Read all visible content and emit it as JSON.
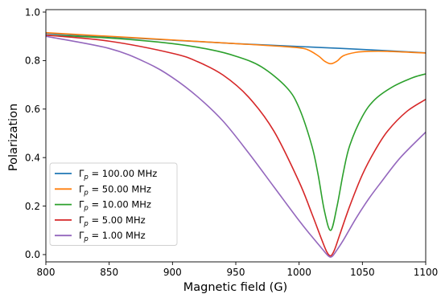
{
  "chart_data": {
    "type": "line",
    "title": "",
    "xlabel": "Magnetic field (G)",
    "ylabel": "Polarization",
    "xlim": [
      800,
      1100
    ],
    "ylim": [
      -0.03,
      1.01
    ],
    "xticks": [
      800,
      850,
      900,
      950,
      1000,
      1050,
      1100
    ],
    "yticks": [
      0.0,
      0.2,
      0.4,
      0.6,
      0.8,
      1.0
    ],
    "xtick_labels": [
      "800",
      "850",
      "900",
      "950",
      "1000",
      "1050",
      "1100"
    ],
    "ytick_labels": [
      "0.0",
      "0.2",
      "0.4",
      "0.6",
      "0.8",
      "1.0"
    ],
    "grid": false,
    "legend_position": "lower-left",
    "series": [
      {
        "name": "Γp = 100.00 MHz",
        "legend_prefix": "Γ",
        "legend_sub": "p",
        "legend_suffix": " = 100.00 MHz",
        "color": "#1f77b4",
        "x": [
          800,
          850,
          900,
          950,
          1000,
          1025,
          1050,
          1100
        ],
        "y": [
          0.912,
          0.898,
          0.884,
          0.87,
          0.858,
          0.852,
          0.846,
          0.832
        ]
      },
      {
        "name": "Γp = 50.00 MHz",
        "legend_prefix": "Γ",
        "legend_sub": "p",
        "legend_suffix": " = 50.00 MHz",
        "color": "#ff7f0e",
        "x": [
          800,
          850,
          900,
          950,
          990,
          1005,
          1015,
          1020,
          1025,
          1030,
          1035,
          1045,
          1055,
          1070,
          1100
        ],
        "y": [
          0.915,
          0.9,
          0.885,
          0.87,
          0.857,
          0.848,
          0.82,
          0.798,
          0.787,
          0.798,
          0.82,
          0.834,
          0.838,
          0.838,
          0.831
        ]
      },
      {
        "name": "Γp = 10.00 MHz",
        "legend_prefix": "Γ",
        "legend_sub": "p",
        "legend_suffix": " = 10.00 MHz",
        "color": "#2ca02c",
        "x": [
          800,
          850,
          900,
          930,
          950,
          970,
          990,
          1000,
          1010,
          1015,
          1020,
          1025,
          1030,
          1035,
          1040,
          1050,
          1060,
          1075,
          1090,
          1100
        ],
        "y": [
          0.905,
          0.893,
          0.87,
          0.845,
          0.818,
          0.775,
          0.69,
          0.605,
          0.45,
          0.33,
          0.18,
          0.1,
          0.2,
          0.34,
          0.45,
          0.57,
          0.64,
          0.695,
          0.73,
          0.745
        ]
      },
      {
        "name": "Γp = 5.00 MHz",
        "legend_prefix": "Γ",
        "legend_sub": "p",
        "legend_suffix": " = 5.00 MHz",
        "color": "#d62728",
        "x": [
          800,
          850,
          900,
          920,
          940,
          960,
          980,
          1000,
          1010,
          1018,
          1022,
          1025,
          1028,
          1032,
          1040,
          1050,
          1060,
          1070,
          1085,
          1100
        ],
        "y": [
          0.905,
          0.88,
          0.83,
          0.795,
          0.74,
          0.65,
          0.51,
          0.3,
          0.17,
          0.06,
          0.01,
          -0.005,
          0.02,
          0.08,
          0.2,
          0.33,
          0.43,
          0.51,
          0.59,
          0.64
        ]
      },
      {
        "name": "Γp = 1.00 MHz",
        "legend_prefix": "Γ",
        "legend_sub": "p",
        "legend_suffix": " = 1.00 MHz",
        "color": "#9467bd",
        "x": [
          800,
          850,
          880,
          900,
          920,
          940,
          960,
          980,
          1000,
          1010,
          1018,
          1023,
          1026,
          1030,
          1035,
          1045,
          1055,
          1065,
          1080,
          1100
        ],
        "y": [
          0.9,
          0.85,
          0.79,
          0.73,
          0.65,
          0.55,
          0.42,
          0.28,
          0.14,
          0.075,
          0.025,
          -0.005,
          -0.008,
          0.02,
          0.06,
          0.15,
          0.23,
          0.3,
          0.4,
          0.505
        ]
      }
    ]
  }
}
